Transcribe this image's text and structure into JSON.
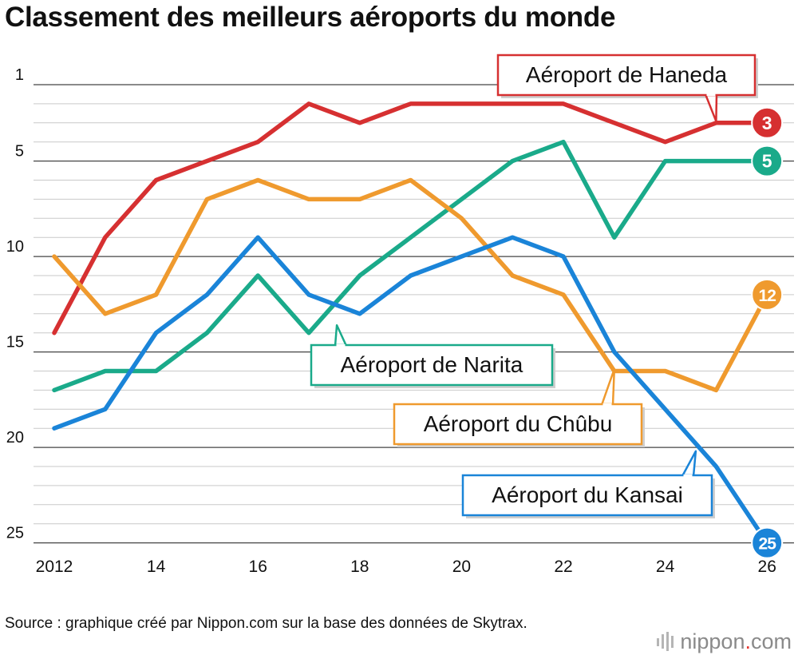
{
  "title": "Classement des meilleurs aéroports du monde",
  "source": "Source : graphique créé par Nippon.com sur la base des données de Skytrax.",
  "brand": {
    "main": "nippon",
    "dot": ".",
    "tld": "com"
  },
  "chart_data": {
    "type": "line",
    "x": [
      2012,
      2013,
      2014,
      2015,
      2016,
      2017,
      2018,
      2019,
      2020,
      2021,
      2022,
      2023,
      2024,
      2025,
      2026
    ],
    "x_tick_values": [
      2012,
      2014,
      2016,
      2018,
      2020,
      2022,
      2024,
      2026
    ],
    "x_tick_labels": [
      "2012",
      "14",
      "16",
      "18",
      "20",
      "22",
      "24",
      "26"
    ],
    "y_ticks": [
      1,
      5,
      10,
      15,
      20,
      25
    ],
    "ylim": [
      1,
      25
    ],
    "y_inverted": true,
    "grid": "horizontal, every rank",
    "series": [
      {
        "name": "Aéroport de Haneda",
        "color": "#d63031",
        "values": [
          14,
          9,
          6,
          5,
          4,
          2,
          3,
          2,
          2,
          2,
          2,
          3,
          4,
          3,
          3
        ],
        "end_label": "3"
      },
      {
        "name": "Aéroport de Narita",
        "color": "#1aaa8a",
        "values": [
          17,
          16,
          16,
          14,
          11,
          14,
          11,
          9,
          7,
          5,
          4,
          9,
          5,
          5,
          5
        ],
        "end_label": "5"
      },
      {
        "name": "Aéroport du Chûbu",
        "color": "#ef9a2e",
        "values": [
          10,
          13,
          12,
          7,
          6,
          7,
          7,
          6,
          8,
          11,
          12,
          16,
          16,
          17,
          12
        ],
        "end_label": "12"
      },
      {
        "name": "Aéroport du Kansai",
        "color": "#1a84d8",
        "values": [
          19,
          18,
          14,
          12,
          9,
          12,
          13,
          11,
          10,
          9,
          10,
          15,
          18,
          21,
          25
        ],
        "end_label": "25"
      }
    ]
  }
}
